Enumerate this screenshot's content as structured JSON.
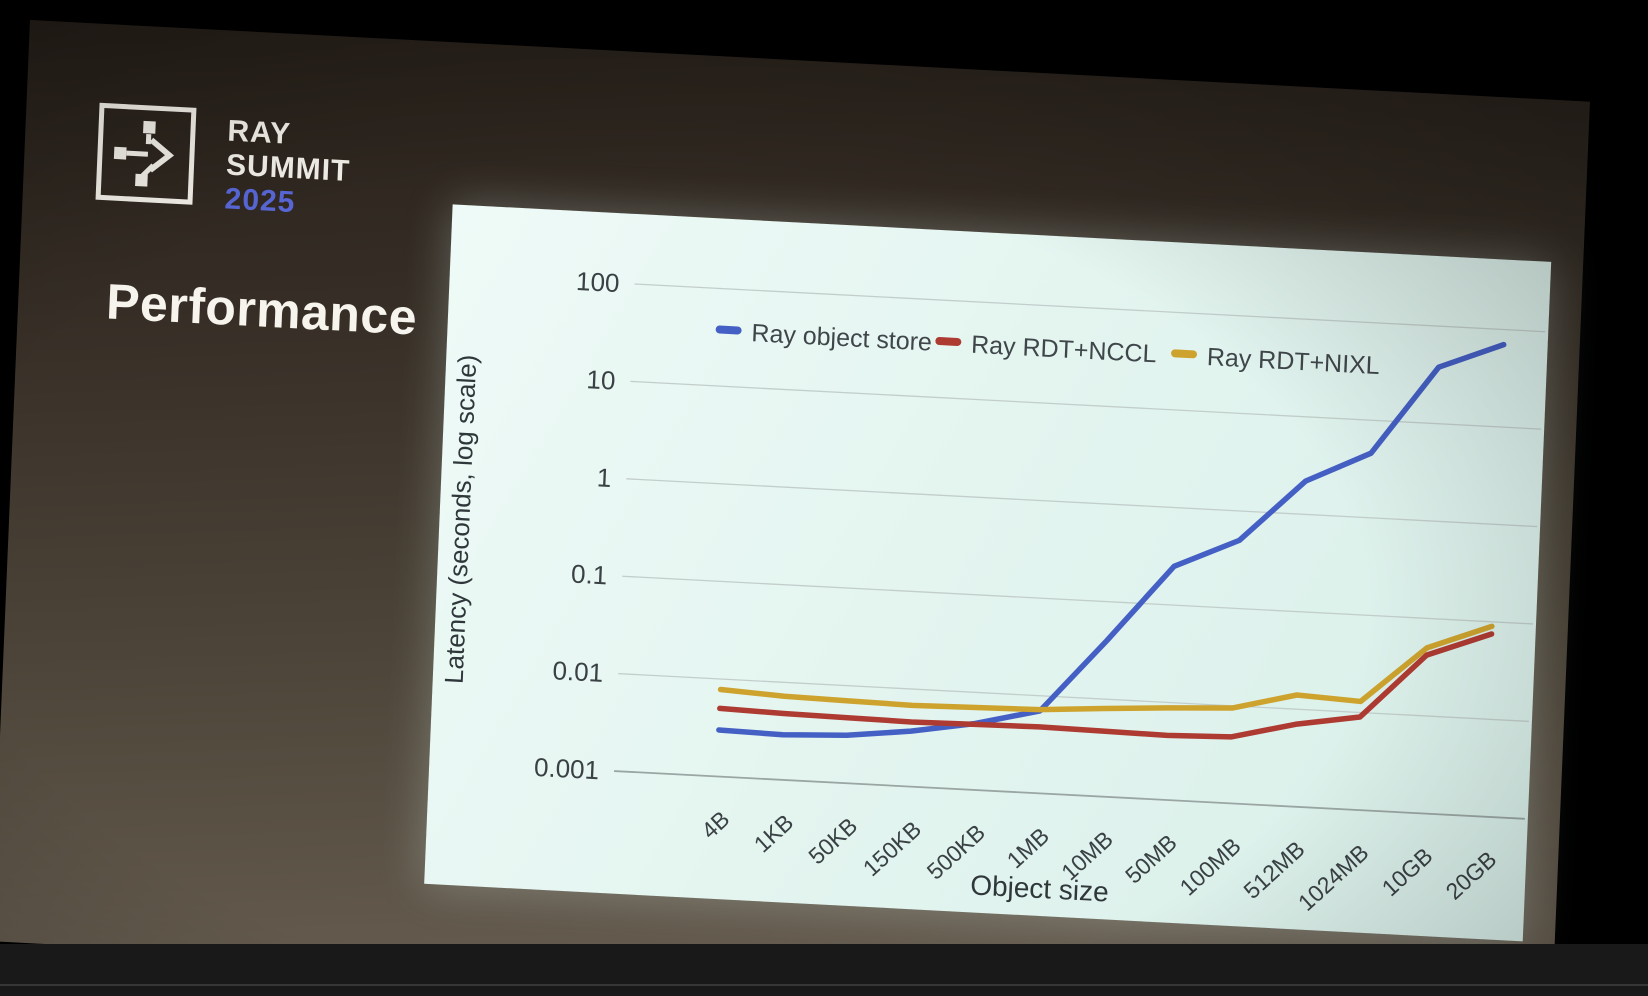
{
  "badge": {
    "line1": "RAY",
    "line2": "SUMMIT",
    "year": "2025",
    "year_color": "#5867d6"
  },
  "slide": {
    "title": "Performance"
  },
  "icons": {
    "logo": "ray-nodes-arrow-icon"
  },
  "colors": {
    "slide_background_top": "#251e18",
    "slide_background_bottom": "#6c6255",
    "panel_background": "#e7f6f1",
    "gridline": "#c2cecb",
    "baseline": "#9aa6a3",
    "tick_text": "#3a4144",
    "legend_text": "#3f464a",
    "axis_title_text": "#2f373a",
    "badge_text": "#f4f1ea"
  },
  "chart_data": {
    "type": "line",
    "title": "",
    "xlabel": "Object size",
    "ylabel": "Latency (seconds, log scale)",
    "y_scale": "log",
    "ylim": [
      0.001,
      100
    ],
    "grid": true,
    "legend_position": "top-inside",
    "y_ticks": [
      {
        "label": "100",
        "value": 100
      },
      {
        "label": "10",
        "value": 10
      },
      {
        "label": "1",
        "value": 1
      },
      {
        "label": "0.1",
        "value": 0.1
      },
      {
        "label": "0.01",
        "value": 0.01
      },
      {
        "label": "0.001",
        "value": 0.001
      }
    ],
    "categories": [
      "4B",
      "1KB",
      "50KB",
      "150KB",
      "500KB",
      "1MB",
      "10MB",
      "50MB",
      "100MB",
      "512MB",
      "1024MB",
      "10GB",
      "20GB"
    ],
    "series": [
      {
        "name": "Ray object store",
        "color": "#4560c4",
        "values": [
          0.003,
          0.0029,
          0.0031,
          0.0037,
          0.0048,
          0.007,
          0.04,
          0.25,
          0.5,
          2.2,
          4.6,
          38,
          70
        ]
      },
      {
        "name": "Ray RDT+NCCL",
        "color": "#ae3b32",
        "values": [
          0.005,
          0.0048,
          0.0047,
          0.0046,
          0.0047,
          0.0048,
          0.0047,
          0.0046,
          0.0048,
          0.007,
          0.009,
          0.042,
          0.075
        ]
      },
      {
        "name": "Ray RDT+NIXL",
        "color": "#cda32e",
        "values": [
          0.0078,
          0.0072,
          0.007,
          0.0068,
          0.007,
          0.0072,
          0.008,
          0.0088,
          0.0095,
          0.014,
          0.013,
          0.05,
          0.09
        ]
      }
    ]
  }
}
